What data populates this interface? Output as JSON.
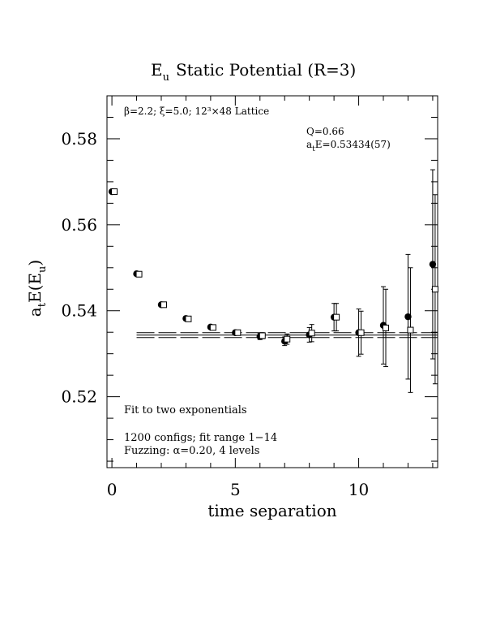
{
  "chart_data": {
    "type": "scatter",
    "title_main": "E",
    "title_sub": "u",
    "title_rest": "Static Potential (R=3)",
    "xlabel": "time separation",
    "ylabel_a": "a",
    "ylabel_t": "t",
    "ylabel_E": "E(E",
    "ylabel_u": "u",
    "ylabel_close": ")",
    "xlim": [
      -0.2,
      13.2
    ],
    "ylim": [
      0.5035,
      0.59
    ],
    "xticks": [
      0,
      5,
      10
    ],
    "xtick_labels": [
      "0",
      "5",
      "10"
    ],
    "yticks": [
      0.52,
      0.54,
      0.56,
      0.58
    ],
    "ytick_labels": [
      "0.52",
      "0.54",
      "0.56",
      "0.58"
    ],
    "annotations": {
      "lattice": "β=2.2; ξ=5.0; 12³×48 Lattice",
      "q_value": "Q=0.66",
      "energy_a": "a",
      "energy_t": "t",
      "energy_rest": "E=0.53434(57)",
      "fit_desc": "Fit to two exponentials",
      "configs": "1200 configs; fit range 1−14",
      "fuzzing": "Fuzzing: α=0.20, 4 levels"
    },
    "fit": {
      "value": 0.53434,
      "error": 0.00057,
      "x_range": [
        1,
        14
      ]
    },
    "series": [
      {
        "marker": "filled-circle",
        "points": [
          {
            "x": 0,
            "y": 0.5677,
            "err": 0.0003
          },
          {
            "x": 1,
            "y": 0.5486,
            "err": 0.0003
          },
          {
            "x": 2,
            "y": 0.5414,
            "err": 0.0003
          },
          {
            "x": 3,
            "y": 0.5382,
            "err": 0.0004
          },
          {
            "x": 4,
            "y": 0.5362,
            "err": 0.0004
          },
          {
            "x": 5,
            "y": 0.5349,
            "err": 0.0005
          },
          {
            "x": 6,
            "y": 0.534,
            "err": 0.0007
          },
          {
            "x": 7,
            "y": 0.5329,
            "err": 0.001
          },
          {
            "x": 8,
            "y": 0.5344,
            "err": 0.0017
          },
          {
            "x": 9,
            "y": 0.5385,
            "err": 0.0032
          },
          {
            "x": 10,
            "y": 0.5349,
            "err": 0.0055
          },
          {
            "x": 11,
            "y": 0.5366,
            "err": 0.009
          },
          {
            "x": 12,
            "y": 0.5386,
            "err": 0.0145
          },
          {
            "x": 13,
            "y": 0.5508,
            "err": 0.022
          }
        ]
      },
      {
        "marker": "open-square",
        "points": [
          {
            "x": 0,
            "y": 0.5677,
            "err": 0.0003
          },
          {
            "x": 1,
            "y": 0.5485,
            "err": 0.0003
          },
          {
            "x": 2,
            "y": 0.5414,
            "err": 0.0003
          },
          {
            "x": 3,
            "y": 0.5381,
            "err": 0.0004
          },
          {
            "x": 4,
            "y": 0.5361,
            "err": 0.0004
          },
          {
            "x": 5,
            "y": 0.5349,
            "err": 0.0005
          },
          {
            "x": 6,
            "y": 0.5342,
            "err": 0.0007
          },
          {
            "x": 7,
            "y": 0.5334,
            "err": 0.0012
          },
          {
            "x": 8,
            "y": 0.5348,
            "err": 0.002
          },
          {
            "x": 9,
            "y": 0.5385,
            "err": 0.0032
          },
          {
            "x": 10,
            "y": 0.5349,
            "err": 0.005
          },
          {
            "x": 11,
            "y": 0.536,
            "err": 0.009
          },
          {
            "x": 12,
            "y": 0.5355,
            "err": 0.0145
          },
          {
            "x": 13,
            "y": 0.545,
            "err": 0.022
          }
        ]
      }
    ]
  }
}
